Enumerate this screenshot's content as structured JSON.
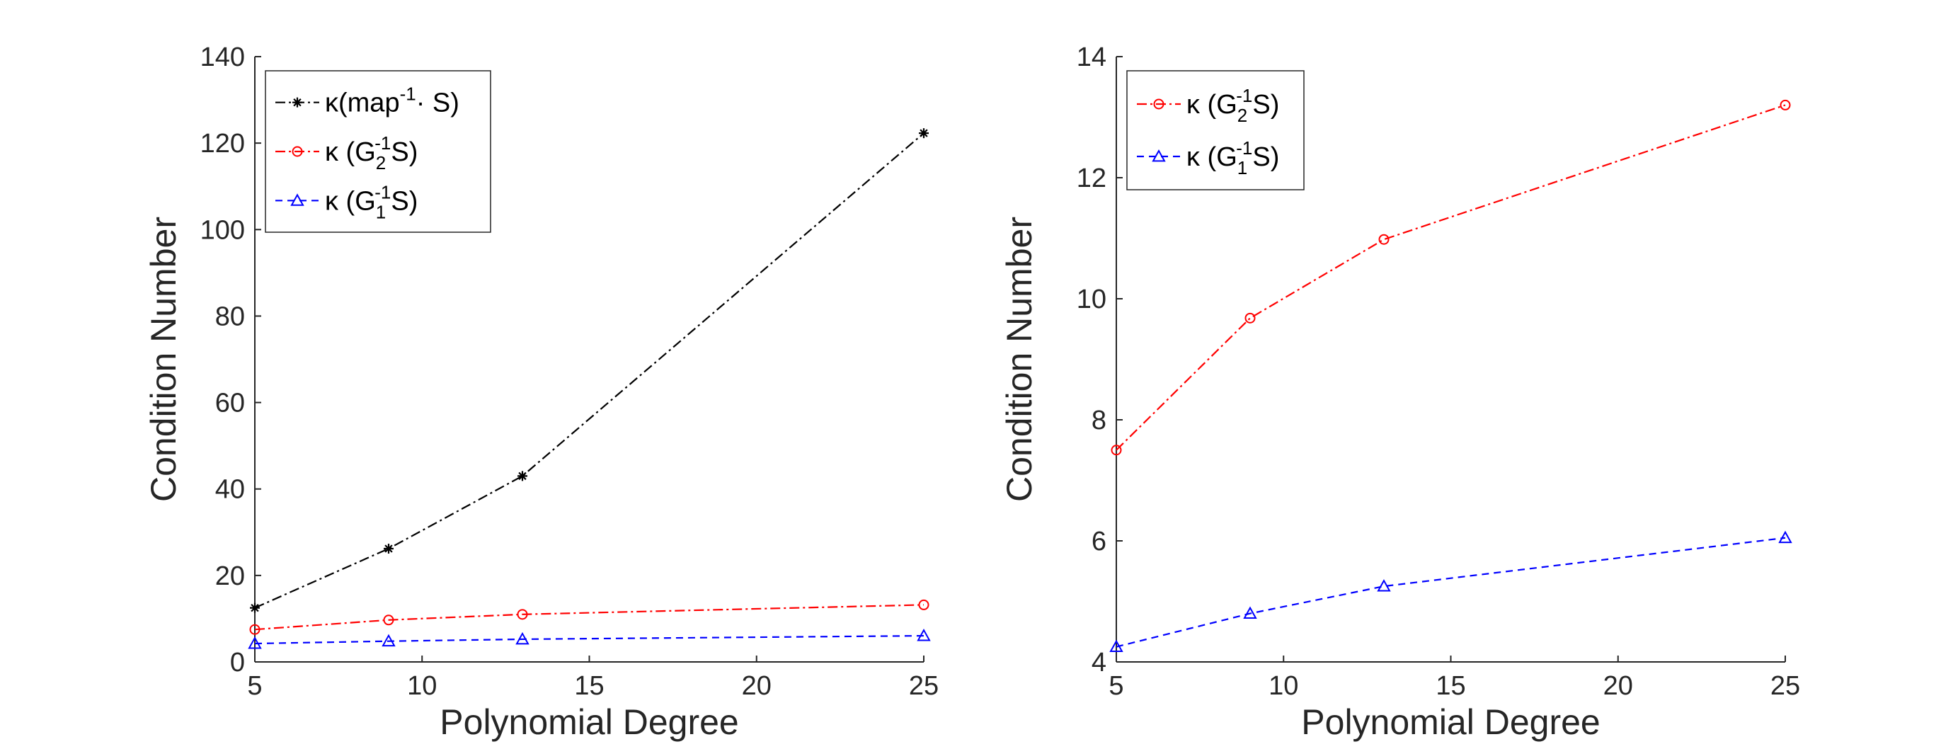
{
  "chart_data": [
    {
      "type": "line",
      "xlabel": "Polynomial Degree",
      "ylabel": "Condition Number",
      "xlim": [
        5,
        25
      ],
      "ylim": [
        0,
        140
      ],
      "xticks": [
        5,
        10,
        15,
        20,
        25
      ],
      "yticks": [
        0,
        20,
        40,
        60,
        80,
        100,
        120,
        140
      ],
      "x": [
        5,
        9,
        13,
        25
      ],
      "legend_position": "top-left",
      "grid": false,
      "series": [
        {
          "name": "κ(map⁻¹· S)",
          "legend": {
            "pre": "κ(map",
            "sup": "-1",
            "post": "· S)"
          },
          "values": [
            12.5,
            26.2,
            43.0,
            122.3
          ],
          "color": "#000000",
          "marker": "star",
          "dash": "14,5,3,5"
        },
        {
          "name": "κ (G₂⁻¹S)",
          "legend": {
            "pre": "κ (G",
            "sub": "2",
            "sup": "-1",
            "post": "S)"
          },
          "values": [
            7.5,
            9.7,
            11.0,
            13.2
          ],
          "color": "#ff0000",
          "marker": "circle",
          "dash": "14,5,3,5"
        },
        {
          "name": "κ (G₁⁻¹S)",
          "legend": {
            "pre": "κ (G",
            "sub": "1",
            "sup": "-1",
            "post": "S)"
          },
          "values": [
            4.25,
            4.8,
            5.25,
            6.05
          ],
          "color": "#0000ff",
          "marker": "triangle",
          "dash": "10,7"
        }
      ]
    },
    {
      "type": "line",
      "xlabel": "Polynomial Degree",
      "ylabel": "Condition Number",
      "xlim": [
        5,
        25
      ],
      "ylim": [
        4,
        14
      ],
      "xticks": [
        5,
        10,
        15,
        20,
        25
      ],
      "yticks": [
        4,
        6,
        8,
        10,
        12,
        14
      ],
      "x": [
        5,
        9,
        13,
        25
      ],
      "legend_position": "top-left",
      "grid": false,
      "series": [
        {
          "name": "κ (G₂⁻¹S)",
          "legend": {
            "pre": "κ (G",
            "sub": "2",
            "sup": "-1",
            "post": "S)"
          },
          "values": [
            7.5,
            9.68,
            10.98,
            13.2
          ],
          "color": "#ff0000",
          "marker": "circle",
          "dash": "14,5,3,5"
        },
        {
          "name": "κ (G₁⁻¹S)",
          "legend": {
            "pre": "κ (G",
            "sub": "1",
            "sup": "-1",
            "post": "S)"
          },
          "values": [
            4.25,
            4.8,
            5.25,
            6.05
          ],
          "color": "#0000ff",
          "marker": "triangle",
          "dash": "10,7"
        }
      ]
    }
  ]
}
